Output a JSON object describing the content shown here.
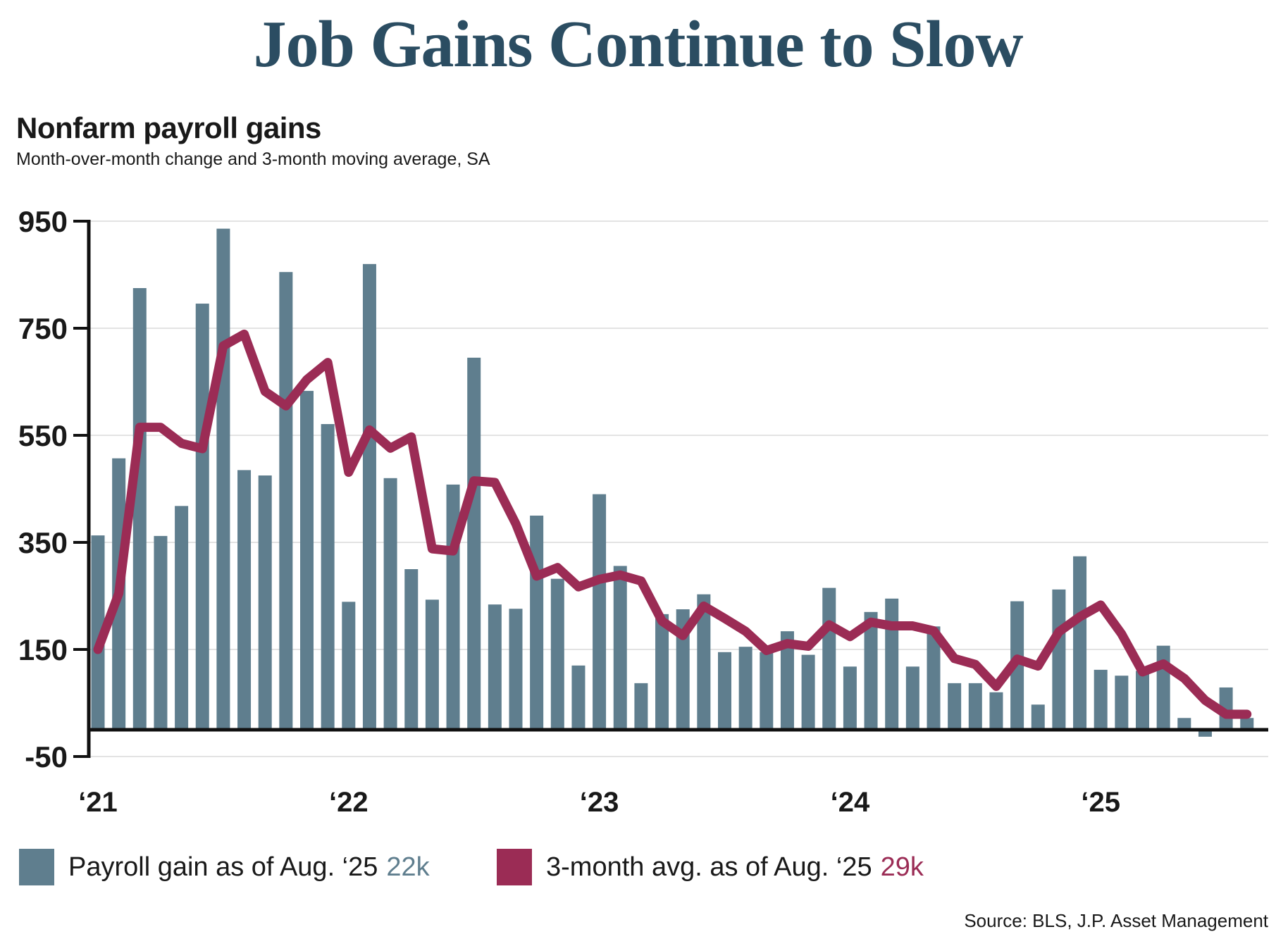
{
  "title": "Job Gains Continue to Slow",
  "heading": "Nonfarm payroll gains",
  "subheading": "Month-over-month change and 3-month moving average, SA",
  "source": "Source: BLS, J.P. Asset Management",
  "legend": {
    "bars_label": "Payroll gain as of Aug. ‘25",
    "bars_value": "22k",
    "line_label": "3-month avg. as of Aug. ‘25",
    "line_value": "29k"
  },
  "colors": {
    "bar": "#5F7E8E",
    "line": "#9B2C55",
    "title_text": "#2B4D62",
    "text": "#191919",
    "grid": "#E3E3E3",
    "axis": "#111111"
  },
  "chart_data": {
    "type": "bar",
    "note": "bars = monthly payroll gain (thousands); line = 3-month moving average",
    "x": [
      "Jan '21",
      "Feb '21",
      "Mar '21",
      "Apr '21",
      "May '21",
      "Jun '21",
      "Jul '21",
      "Aug '21",
      "Sep '21",
      "Oct '21",
      "Nov '21",
      "Dec '21",
      "Jan '22",
      "Feb '22",
      "Mar '22",
      "Apr '22",
      "May '22",
      "Jun '22",
      "Jul '22",
      "Aug '22",
      "Sep '22",
      "Oct '22",
      "Nov '22",
      "Dec '22",
      "Jan '23",
      "Feb '23",
      "Mar '23",
      "Apr '23",
      "May '23",
      "Jun '23",
      "Jul '23",
      "Aug '23",
      "Sep '23",
      "Oct '23",
      "Nov '23",
      "Dec '23",
      "Jan '24",
      "Feb '24",
      "Mar '24",
      "Apr '24",
      "May '24",
      "Jun '24",
      "Jul '24",
      "Aug '24",
      "Sep '24",
      "Oct '24",
      "Nov '24",
      "Dec '24",
      "Jan '25",
      "Feb '25",
      "Mar '25",
      "Apr '25",
      "May '25",
      "Jun '25",
      "Jul '25",
      "Aug '25"
    ],
    "series": [
      {
        "name": "Payroll gain",
        "type": "bar",
        "values": [
          363,
          507,
          825,
          362,
          418,
          796,
          936,
          485,
          475,
          855,
          633,
          571,
          239,
          870,
          470,
          300,
          243,
          458,
          695,
          234,
          226,
          400,
          282,
          120,
          440,
          306,
          87,
          216,
          225,
          253,
          145,
          155,
          145,
          184,
          140,
          265,
          118,
          220,
          245,
          118,
          193,
          87,
          87,
          70,
          240,
          47,
          262,
          324,
          112,
          101,
          110,
          157,
          22,
          -13,
          79,
          22
        ]
      },
      {
        "name": "3-month moving average",
        "type": "line",
        "values": [
          150,
          255,
          565,
          565,
          535,
          525,
          717,
          739,
          632,
          605,
          654,
          686,
          481,
          560,
          526,
          547,
          338,
          334,
          465,
          462,
          385,
          287,
          303,
          267,
          281,
          289,
          278,
          203,
          176,
          231,
          208,
          184,
          148,
          161,
          156,
          196,
          174,
          201,
          194,
          194,
          185,
          133,
          122,
          81,
          132,
          119,
          183,
          211,
          233,
          179,
          108,
          123,
          96,
          55,
          29,
          29
        ]
      }
    ],
    "y_ticks": [
      950,
      750,
      550,
      350,
      150,
      -50
    ],
    "x_ticks": [
      {
        "label": "‘21",
        "index": 0
      },
      {
        "label": "‘22",
        "index": 12
      },
      {
        "label": "‘23",
        "index": 24
      },
      {
        "label": "‘24",
        "index": 36
      },
      {
        "label": "‘25",
        "index": 48
      }
    ],
    "ylim": [
      -50,
      950
    ],
    "grid": true,
    "legend_position": "bottom"
  }
}
